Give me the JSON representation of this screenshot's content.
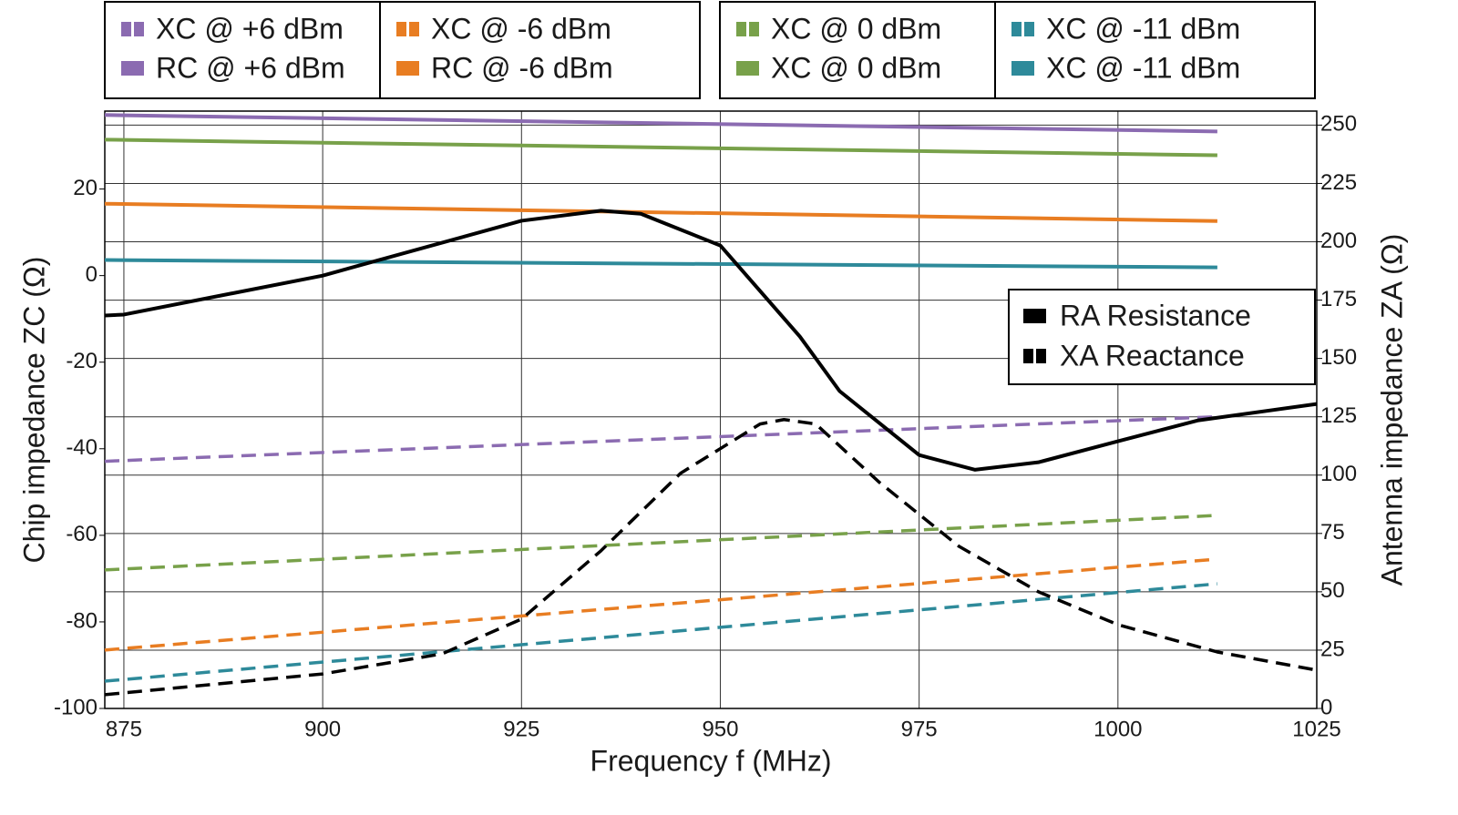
{
  "chart_data": {
    "type": "line",
    "xlabel": "Frequency f (MHz)",
    "ylabel": "Chip impedance ZC (Ω)",
    "y2label": "Antenna impedance ZA (Ω)",
    "xlim": [
      872.6,
      1025
    ],
    "xticks": [
      875,
      900,
      925,
      950,
      975,
      1000,
      1025
    ],
    "ylim": [
      -100,
      38
    ],
    "yticks": [
      -100,
      -80,
      -60,
      -40,
      -20,
      0,
      20
    ],
    "y2lim": [
      0,
      256
    ],
    "y2ticks": [
      0,
      25,
      50,
      75,
      100,
      125,
      150,
      175,
      200,
      225,
      250
    ],
    "grid": true,
    "series": [
      {
        "name": "XC @ +6 dBm",
        "color": "#8b6bb1",
        "dash": true,
        "x": [
          872.6,
          1012.5
        ],
        "values": [
          -42.9,
          -32.6
        ]
      },
      {
        "name": "RC @ +6 dBm",
        "color": "#8b6bb1",
        "dash": false,
        "x": [
          872.6,
          1012.5
        ],
        "values": [
          37.1,
          33.3
        ]
      },
      {
        "name": "XC @ -6 dBm",
        "color": "#e87d22",
        "dash": true,
        "x": [
          872.6,
          1012.5
        ],
        "values": [
          -86.5,
          -65.5
        ]
      },
      {
        "name": "RC @ -6 dBm",
        "color": "#e87d22",
        "dash": false,
        "x": [
          872.6,
          1012.5
        ],
        "values": [
          16.6,
          12.6
        ]
      },
      {
        "name": "XC @ 0 dBm",
        "color": "#78a14a",
        "dash": true,
        "x": [
          872.6,
          1012.5
        ],
        "values": [
          -68.0,
          -55.4
        ]
      },
      {
        "name": "XC @ 0 dBm",
        "color": "#78a14a",
        "dash": false,
        "x": [
          872.6,
          1012.5
        ],
        "values": [
          31.4,
          27.8
        ]
      },
      {
        "name": "XC @ -11 dBm",
        "color": "#2e8a9a",
        "dash": true,
        "x": [
          872.6,
          1012.5
        ],
        "values": [
          -93.7,
          -71.2
        ]
      },
      {
        "name": "XC @ -11 dBm",
        "color": "#2e8a9a",
        "dash": false,
        "x": [
          872.6,
          1012.5
        ],
        "values": [
          3.6,
          1.9
        ]
      },
      {
        "name": "RA Resistance",
        "color": "#000000",
        "dash": false,
        "axis": "y2",
        "x": [
          872.6,
          875,
          900,
          925,
          935,
          940,
          950,
          960,
          965,
          975,
          982,
          990,
          1000,
          1010,
          1025
        ],
        "values": [
          168.4,
          168.8,
          185.5,
          209,
          213.3,
          212,
          198.4,
          159.4,
          136,
          108.6,
          102.3,
          105.5,
          114.5,
          123.4,
          130.5
        ]
      },
      {
        "name": "XA Reactance",
        "color": "#000000",
        "dash": true,
        "axis": "y2",
        "x": [
          872.6,
          900,
          915,
          925,
          935,
          945,
          955,
          958,
          962,
          970,
          980,
          990,
          1000,
          1012.5,
          1025
        ],
        "values": [
          5.9,
          14.8,
          23.4,
          38.3,
          67.6,
          100.8,
          121.9,
          123.8,
          121.9,
          96.9,
          69.5,
          50,
          35.9,
          24.2,
          16.4
        ]
      }
    ]
  }
}
